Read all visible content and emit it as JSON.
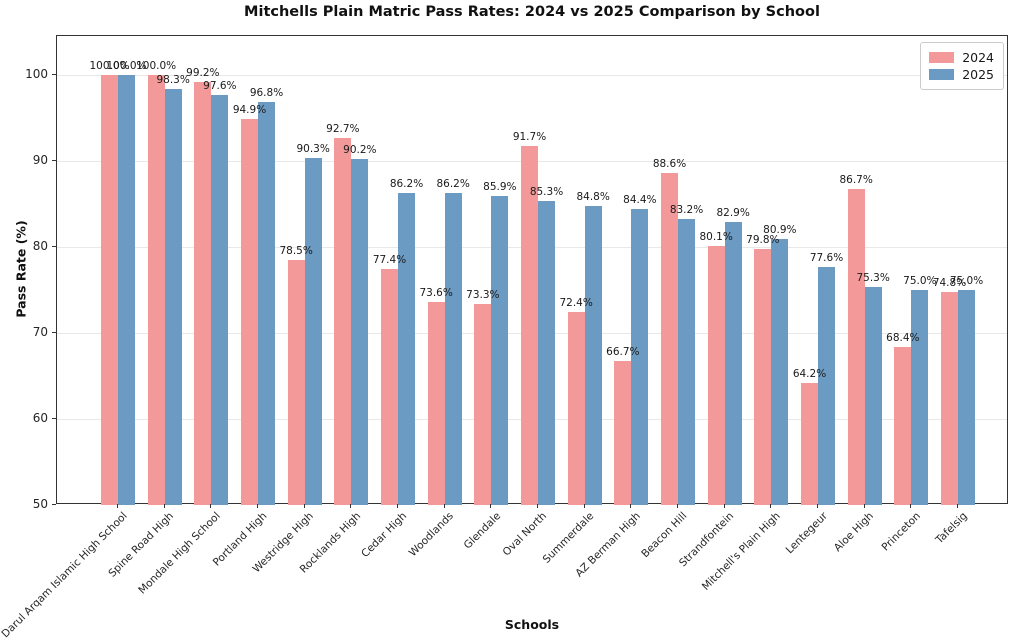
{
  "chart_data": {
    "type": "bar",
    "title": "Mitchells Plain Matric Pass Rates: 2024 vs 2025 Comparison by School",
    "xlabel": "Schools",
    "ylabel": "Pass Rate (%)",
    "categories": [
      "Darul Arqam Islamic High School",
      "Spine Road High",
      "Mondale High School",
      "Portland High",
      "Westridge High",
      "Rocklands High",
      "Cedar High",
      "Woodlands",
      "Glendale",
      "Oval North",
      "Summerdale",
      "AZ Berman High",
      "Beacon Hill",
      "Strandfontein",
      "Mitchell's Plain High",
      "Lentegeur",
      "Aloe High",
      "Princeton",
      "Tafelsig"
    ],
    "series": [
      {
        "name": "2024",
        "color": "#f39999",
        "values": [
          100.0,
          100.0,
          99.2,
          94.9,
          78.5,
          92.7,
          77.4,
          73.6,
          73.3,
          91.7,
          72.4,
          66.7,
          88.6,
          80.1,
          79.8,
          64.2,
          86.7,
          68.4,
          74.8
        ]
      },
      {
        "name": "2025",
        "color": "#6b9bc3",
        "values": [
          100.0,
          98.3,
          97.6,
          96.8,
          90.3,
          90.2,
          86.2,
          86.2,
          85.9,
          85.3,
          84.8,
          84.4,
          83.2,
          82.9,
          80.9,
          77.6,
          75.3,
          75.0,
          75.0
        ]
      }
    ],
    "ylim": [
      50,
      104.5
    ],
    "yticks": [
      50,
      60,
      70,
      80,
      90,
      100
    ],
    "grid": "y",
    "legend_position": "top-right",
    "value_label_suffix": "%"
  }
}
